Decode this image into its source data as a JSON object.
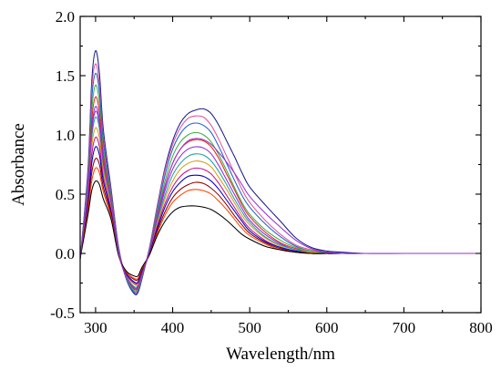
{
  "chart_data": {
    "type": "line",
    "title": "",
    "xlabel": "Wavelength/nm",
    "ylabel": "Absorbance",
    "xlim": [
      280,
      800
    ],
    "ylim": [
      -0.5,
      2.0
    ],
    "x_ticks": [
      300,
      400,
      500,
      600,
      700,
      800
    ],
    "x_tick_labels": [
      "300",
      "400",
      "500",
      "600",
      "700",
      "800"
    ],
    "y_ticks": [
      -0.5,
      0.0,
      0.5,
      1.0,
      1.5,
      2.0
    ],
    "y_tick_labels": [
      "-0.5",
      "0.0",
      "0.5",
      "1.0",
      "1.5",
      "2.0"
    ],
    "grid": false,
    "legend": "none",
    "x": [
      280,
      290,
      295,
      300,
      305,
      310,
      320,
      330,
      340,
      350,
      355,
      360,
      370,
      380,
      390,
      400,
      410,
      420,
      430,
      440,
      450,
      460,
      470,
      480,
      490,
      500,
      520,
      540,
      560,
      580,
      600,
      620,
      650,
      700,
      750,
      800
    ],
    "series": [
      {
        "color": "#1a1a8c",
        "values": [
          -0.05,
          0.7,
          1.45,
          1.71,
          1.52,
          1.05,
          0.55,
          0.05,
          -0.22,
          -0.34,
          -0.33,
          -0.22,
          0.05,
          0.4,
          0.72,
          0.95,
          1.1,
          1.18,
          1.21,
          1.22,
          1.18,
          1.08,
          0.95,
          0.82,
          0.68,
          0.56,
          0.41,
          0.27,
          0.13,
          0.05,
          0.02,
          0.01,
          0.0,
          0.0,
          0.0,
          0.0
        ]
      },
      {
        "color": "#e0559a",
        "values": [
          -0.05,
          0.66,
          1.38,
          1.6,
          1.42,
          0.98,
          0.52,
          0.04,
          -0.21,
          -0.32,
          -0.31,
          -0.2,
          0.05,
          0.39,
          0.7,
          0.92,
          1.06,
          1.14,
          1.16,
          1.15,
          1.08,
          0.96,
          0.82,
          0.68,
          0.54,
          0.43,
          0.28,
          0.16,
          0.07,
          0.03,
          0.01,
          0.0,
          0.0,
          0.0,
          0.0,
          0.0
        ]
      },
      {
        "color": "#2060d0",
        "values": [
          -0.05,
          0.63,
          1.3,
          1.52,
          1.36,
          0.94,
          0.5,
          0.03,
          -0.22,
          -0.33,
          -0.32,
          -0.21,
          0.04,
          0.36,
          0.66,
          0.88,
          1.01,
          1.08,
          1.1,
          1.08,
          1.02,
          0.9,
          0.76,
          0.62,
          0.49,
          0.39,
          0.25,
          0.14,
          0.06,
          0.02,
          0.01,
          0.0,
          0.0,
          0.0,
          0.0,
          0.0
        ]
      },
      {
        "color": "#3cb043",
        "values": [
          -0.05,
          0.58,
          1.2,
          1.42,
          1.27,
          0.88,
          0.47,
          0.02,
          -0.21,
          -0.31,
          -0.3,
          -0.2,
          0.03,
          0.33,
          0.61,
          0.82,
          0.94,
          1.0,
          1.02,
          1.0,
          0.94,
          0.83,
          0.7,
          0.56,
          0.43,
          0.33,
          0.2,
          0.11,
          0.05,
          0.02,
          0.0,
          0.0,
          0.0,
          0.0,
          0.0,
          0.0
        ]
      },
      {
        "color": "#e8231e",
        "values": [
          -0.04,
          0.55,
          1.12,
          1.32,
          1.19,
          0.83,
          0.45,
          0.01,
          -0.2,
          -0.3,
          -0.29,
          -0.19,
          0.02,
          0.31,
          0.57,
          0.76,
          0.88,
          0.94,
          0.96,
          0.95,
          0.9,
          0.8,
          0.67,
          0.54,
          0.41,
          0.31,
          0.18,
          0.09,
          0.04,
          0.01,
          0.0,
          0.0,
          0.0,
          0.0,
          0.0,
          0.0
        ]
      },
      {
        "color": "#8a2be2",
        "values": [
          -0.04,
          0.53,
          1.05,
          1.24,
          1.12,
          0.79,
          0.43,
          0.01,
          -0.2,
          -0.29,
          -0.28,
          -0.18,
          0.02,
          0.29,
          0.53,
          0.71,
          0.82,
          0.88,
          0.9,
          0.89,
          0.84,
          0.74,
          0.62,
          0.5,
          0.38,
          0.28,
          0.16,
          0.08,
          0.03,
          0.01,
          0.0,
          0.0,
          0.0,
          0.0,
          0.0,
          0.0
        ]
      },
      {
        "color": "#20a0a0",
        "values": [
          -0.04,
          0.5,
          0.97,
          1.15,
          1.05,
          0.74,
          0.41,
          0.0,
          -0.19,
          -0.28,
          -0.27,
          -0.18,
          0.01,
          0.27,
          0.49,
          0.66,
          0.76,
          0.82,
          0.84,
          0.83,
          0.78,
          0.69,
          0.58,
          0.46,
          0.35,
          0.26,
          0.14,
          0.07,
          0.03,
          0.01,
          0.0,
          0.0,
          0.0,
          0.0,
          0.0,
          0.0
        ]
      },
      {
        "color": "#d4a017",
        "values": [
          -0.04,
          0.47,
          0.9,
          1.06,
          0.97,
          0.7,
          0.39,
          0.0,
          -0.18,
          -0.26,
          -0.26,
          -0.17,
          0.01,
          0.25,
          0.46,
          0.61,
          0.71,
          0.76,
          0.78,
          0.77,
          0.73,
          0.64,
          0.54,
          0.43,
          0.32,
          0.24,
          0.13,
          0.06,
          0.02,
          0.01,
          0.0,
          0.0,
          0.0,
          0.0,
          0.0,
          0.0
        ]
      },
      {
        "color": "#c71585",
        "values": [
          -0.04,
          0.44,
          0.83,
          0.98,
          0.9,
          0.65,
          0.37,
          -0.01,
          -0.18,
          -0.25,
          -0.25,
          -0.16,
          0.0,
          0.23,
          0.42,
          0.56,
          0.65,
          0.7,
          0.72,
          0.71,
          0.67,
          0.59,
          0.49,
          0.39,
          0.29,
          0.21,
          0.11,
          0.05,
          0.02,
          0.0,
          0.0,
          0.0,
          0.0,
          0.0,
          0.0,
          0.0
        ]
      },
      {
        "color": "#0000cd",
        "values": [
          -0.04,
          0.41,
          0.76,
          0.9,
          0.83,
          0.61,
          0.35,
          -0.01,
          -0.17,
          -0.24,
          -0.24,
          -0.15,
          0.0,
          0.21,
          0.39,
          0.52,
          0.6,
          0.65,
          0.66,
          0.65,
          0.61,
          0.54,
          0.45,
          0.36,
          0.27,
          0.19,
          0.1,
          0.05,
          0.02,
          0.0,
          0.0,
          0.0,
          0.0,
          0.0,
          0.0,
          0.0
        ]
      },
      {
        "color": "#8b0000",
        "values": [
          -0.04,
          0.38,
          0.68,
          0.8,
          0.75,
          0.56,
          0.33,
          -0.01,
          -0.16,
          -0.22,
          -0.22,
          -0.14,
          -0.01,
          0.19,
          0.35,
          0.47,
          0.54,
          0.58,
          0.6,
          0.59,
          0.55,
          0.49,
          0.41,
          0.32,
          0.24,
          0.17,
          0.09,
          0.04,
          0.01,
          0.0,
          0.0,
          0.0,
          0.0,
          0.0,
          0.0,
          0.0
        ]
      },
      {
        "color": "#ff4500",
        "values": [
          -0.04,
          0.35,
          0.61,
          0.72,
          0.68,
          0.52,
          0.31,
          -0.02,
          -0.16,
          -0.21,
          -0.21,
          -0.13,
          -0.01,
          0.17,
          0.32,
          0.43,
          0.49,
          0.53,
          0.54,
          0.53,
          0.5,
          0.44,
          0.37,
          0.29,
          0.21,
          0.15,
          0.08,
          0.03,
          0.01,
          0.0,
          0.0,
          0.0,
          0.0,
          0.0,
          0.0,
          0.0
        ]
      },
      {
        "color": "#000000",
        "values": [
          -0.04,
          0.32,
          0.53,
          0.61,
          0.58,
          0.46,
          0.29,
          -0.02,
          -0.15,
          -0.19,
          -0.19,
          -0.12,
          -0.01,
          0.15,
          0.27,
          0.35,
          0.39,
          0.4,
          0.4,
          0.39,
          0.37,
          0.33,
          0.28,
          0.22,
          0.16,
          0.12,
          0.06,
          0.03,
          0.01,
          0.0,
          0.0,
          0.0,
          0.0,
          0.0,
          0.0,
          0.0
        ]
      },
      {
        "color": "#9932cc",
        "values": [
          -0.04,
          0.52,
          1.02,
          1.2,
          1.09,
          0.77,
          0.44,
          0.0,
          -0.2,
          -0.29,
          -0.28,
          -0.18,
          0.02,
          0.3,
          0.56,
          0.76,
          0.88,
          0.95,
          0.97,
          0.96,
          0.92,
          0.85,
          0.77,
          0.68,
          0.58,
          0.48,
          0.34,
          0.22,
          0.11,
          0.04,
          0.01,
          0.0,
          0.0,
          0.0,
          0.0,
          0.0
        ]
      }
    ]
  }
}
